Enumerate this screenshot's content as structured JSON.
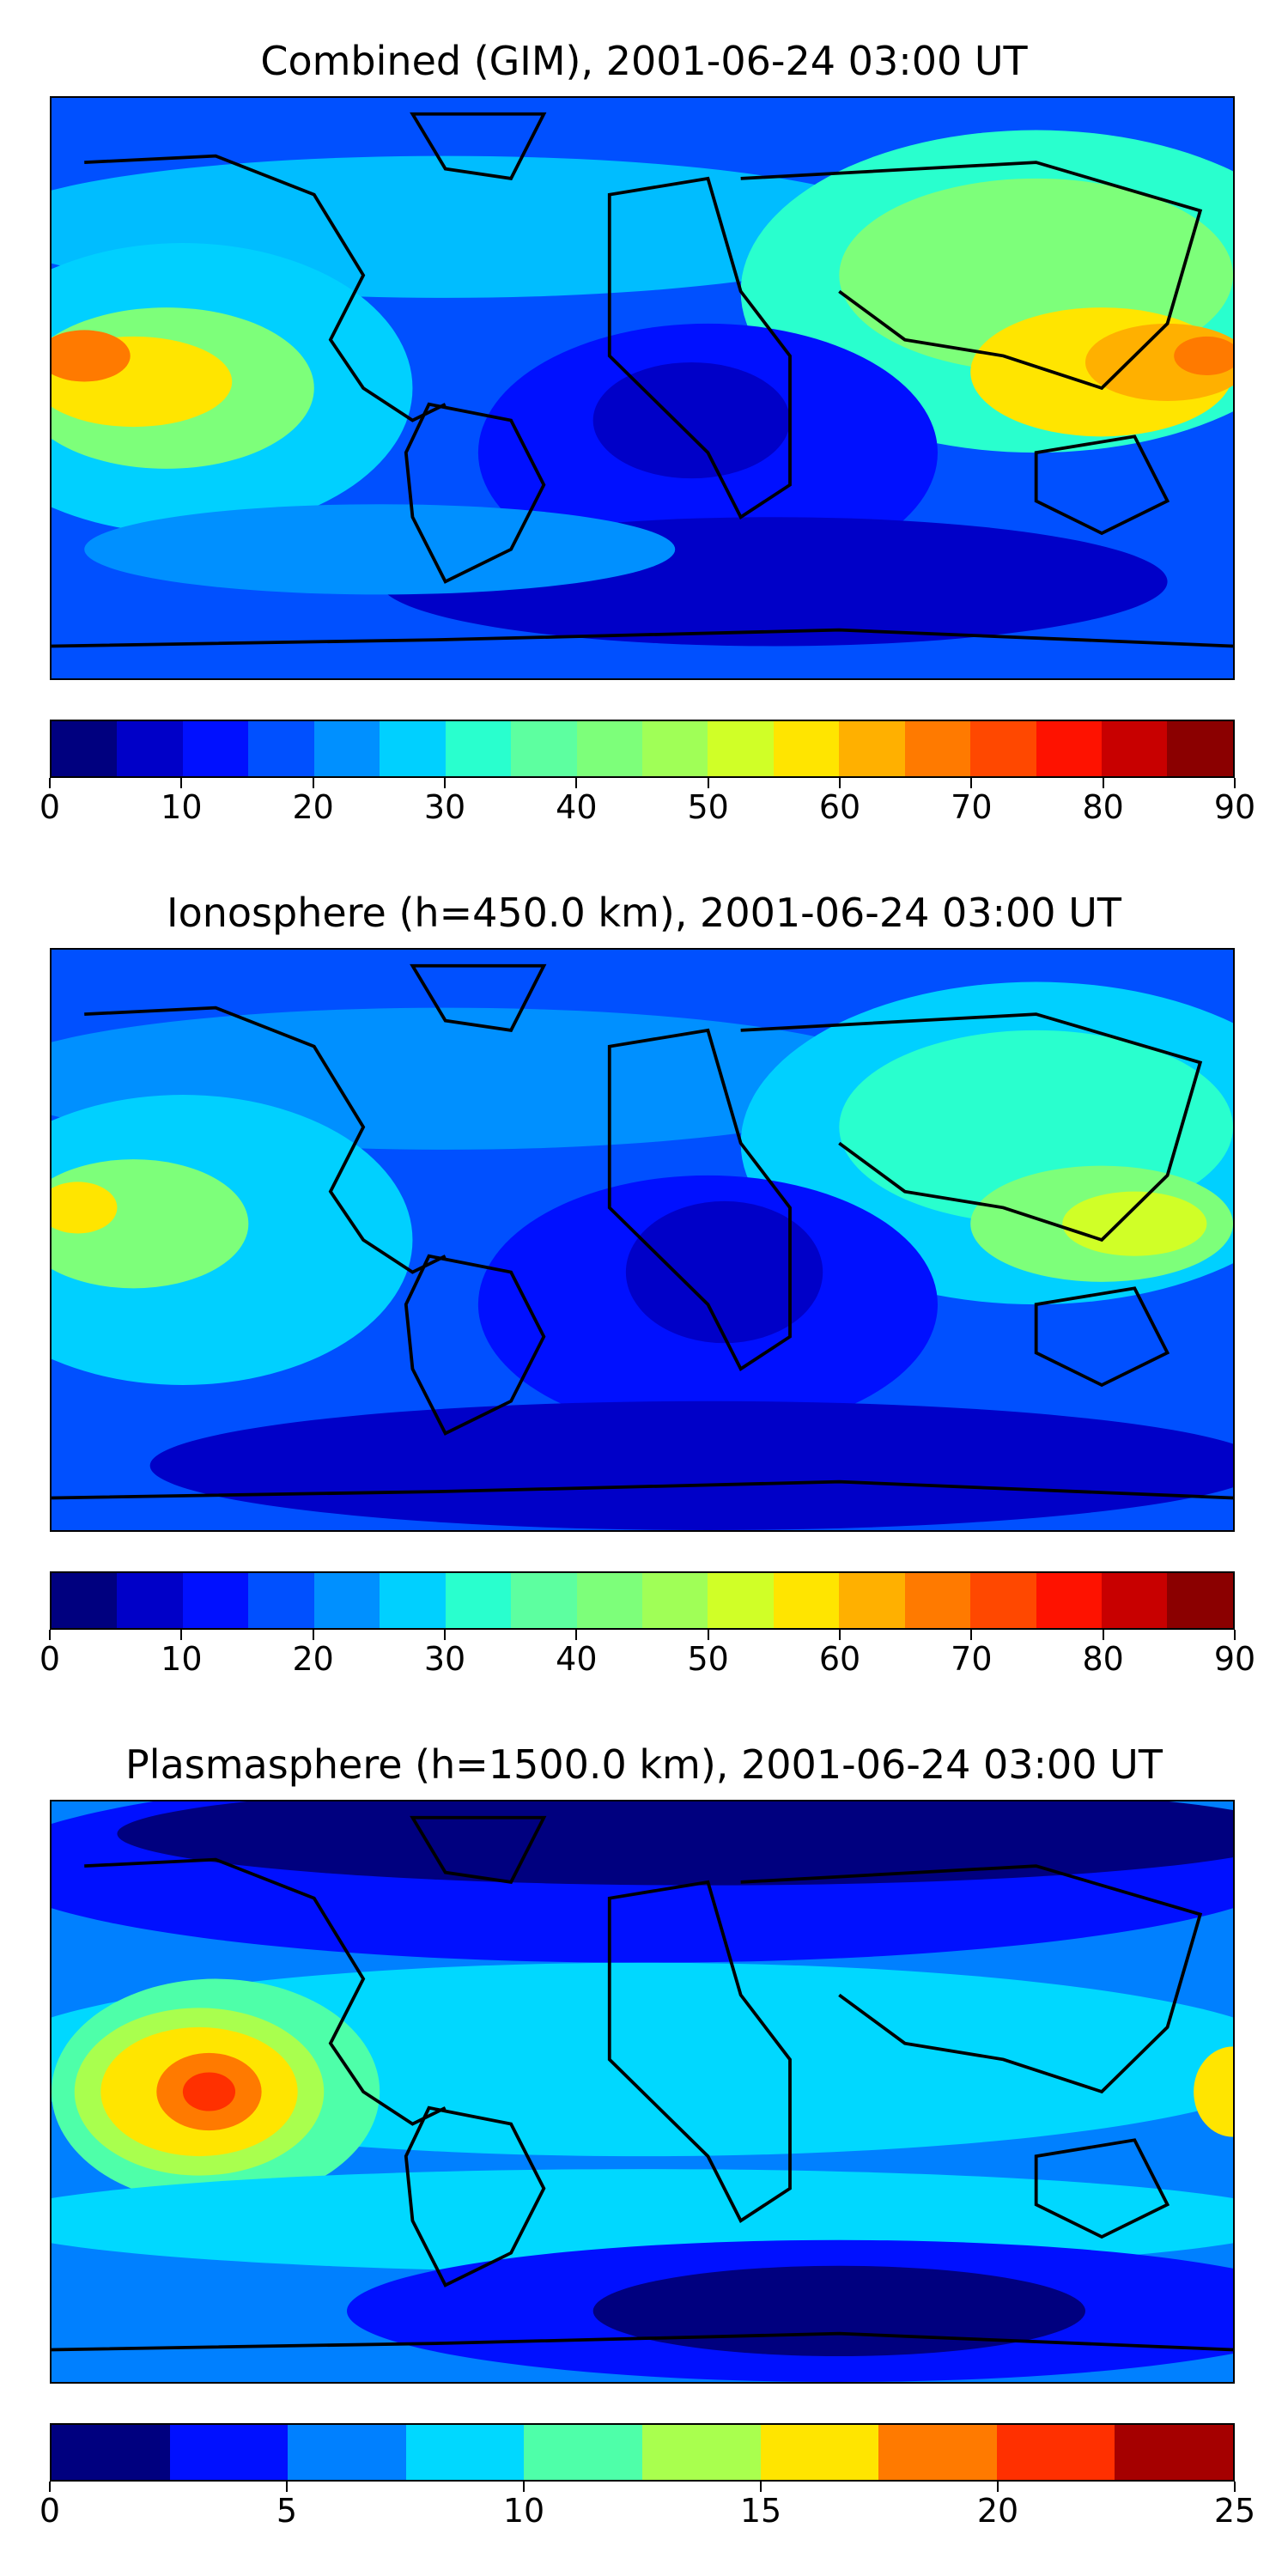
{
  "panels": [
    {
      "title": "Combined (GIM), 2001-06-24 03:00 UT",
      "colorbar_ticks": [
        "0",
        "10",
        "20",
        "30",
        "40",
        "50",
        "60",
        "70",
        "80",
        "90"
      ],
      "colorbar_levels": 18,
      "range": [
        0,
        90
      ]
    },
    {
      "title": "Ionosphere  (h=450.0 km), 2001-06-24 03:00 UT",
      "colorbar_ticks": [
        "0",
        "10",
        "20",
        "30",
        "40",
        "50",
        "60",
        "70",
        "80",
        "90"
      ],
      "colorbar_levels": 18,
      "range": [
        0,
        90
      ]
    },
    {
      "title": "Plasmasphere (h=1500.0 km), 2001-06-24 03:00 UT",
      "colorbar_ticks": [
        "0",
        "5",
        "10",
        "15",
        "20",
        "25"
      ],
      "colorbar_levels": 10,
      "range": [
        0,
        25
      ]
    }
  ],
  "colormap": "jet",
  "colors": {
    "jet18": [
      "#00007f",
      "#0000c8",
      "#0010ff",
      "#0050ff",
      "#0090ff",
      "#00d0ff",
      "#29ffce",
      "#5dffa0",
      "#7dff7a",
      "#a0ff57",
      "#d0ff27",
      "#ffe500",
      "#ffb000",
      "#ff7a00",
      "#ff4800",
      "#fe1200",
      "#c80000",
      "#8b0000"
    ],
    "jet10": [
      "#00007f",
      "#0010ff",
      "#0080ff",
      "#00d8ff",
      "#4effa9",
      "#a9ff4e",
      "#ffe500",
      "#ff7a00",
      "#ff3000",
      "#a50000"
    ]
  }
}
